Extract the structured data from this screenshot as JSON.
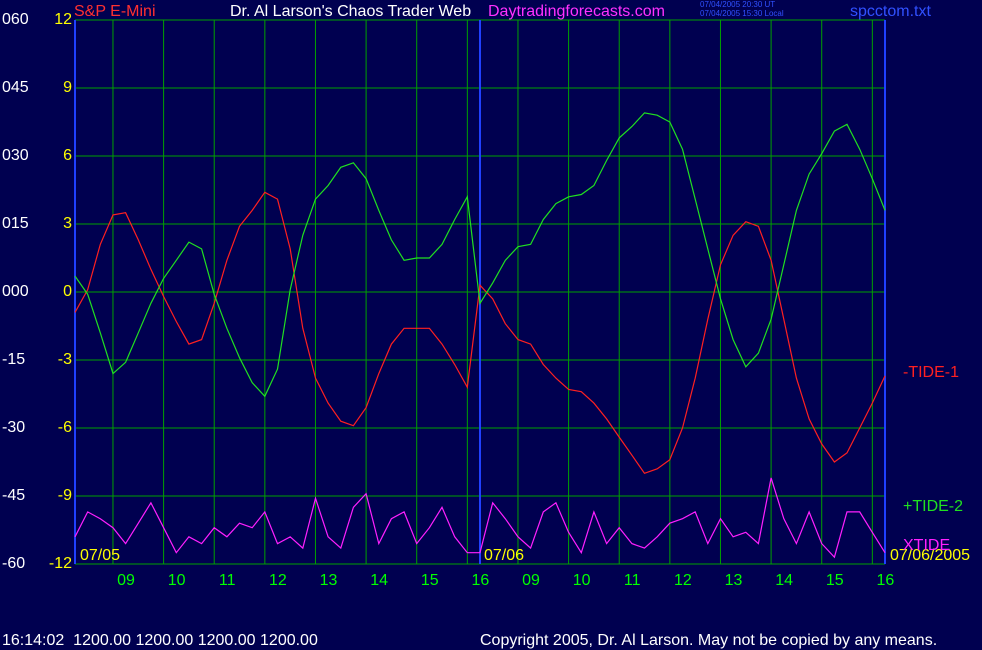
{
  "chart_data": {
    "type": "line",
    "header": {
      "symbol": "S&P E-Mini",
      "title": "Dr. Al Larson's Chaos Trader Web",
      "site": "Daytradingforecasts.com",
      "ut_time": "07/04/2005 20:30 UT",
      "local_time": "07/04/2005 15:30 Local",
      "file": "spcctom.txt"
    },
    "footer": {
      "status": "16:14:02  1200.00 1200.00 1200.00 1200.00",
      "copyright": "Copyright 2005, Dr. Al Larson. May not be copied by any means."
    },
    "date_labels": [
      "07/05",
      "07/06",
      "07/06/2005"
    ],
    "categories": [
      null,
      null,
      null,
      "09",
      null,
      null,
      null,
      "10",
      null,
      null,
      null,
      "11",
      null,
      null,
      null,
      "12",
      null,
      null,
      null,
      "13",
      null,
      null,
      null,
      "14",
      null,
      null,
      null,
      "15",
      null,
      null,
      null,
      "16",
      null,
      null,
      null,
      "09",
      null,
      null,
      null,
      "10",
      null,
      null,
      null,
      "11",
      null,
      null,
      null,
      "12",
      null,
      null,
      null,
      "13",
      null,
      null,
      null,
      "14",
      null,
      null,
      null,
      "15",
      null,
      null,
      null,
      "16",
      null
    ],
    "ylim": [
      -12,
      12
    ],
    "yticks": [
      12,
      9,
      6,
      3,
      0,
      -3,
      -6,
      -9,
      -12
    ],
    "y2lim": [
      -60,
      60
    ],
    "y2ticks": [
      {
        "value": 60,
        "label": "060"
      },
      {
        "value": 45,
        "label": "045"
      },
      {
        "value": 30,
        "label": "030"
      },
      {
        "value": 15,
        "label": "015"
      },
      {
        "value": 0,
        "label": "000"
      },
      -15,
      -30,
      -45,
      -60
    ],
    "grid": true,
    "series": [
      {
        "name": "-TIDE-1",
        "color": "#ff2020",
        "values": [
          -0.9,
          0.1,
          2.1,
          3.4,
          3.5,
          2.3,
          1.0,
          -0.2,
          -1.3,
          -2.3,
          -2.1,
          -0.5,
          1.4,
          2.9,
          3.6,
          4.4,
          4.1,
          1.9,
          -1.6,
          -3.8,
          -4.9,
          -5.7,
          -5.9,
          -5.1,
          -3.6,
          -2.3,
          -1.6,
          -1.6,
          -1.6,
          -2.3,
          -3.2,
          -4.2,
          0.3,
          -0.3,
          -1.4,
          -2.1,
          -2.3,
          -3.2,
          -3.8,
          -4.3,
          -4.4,
          -4.9,
          -5.6,
          -6.4,
          -7.2,
          -8.0,
          -7.8,
          -7.4,
          -6.0,
          -3.8,
          -1.2,
          1.2,
          2.5,
          3.1,
          2.9,
          1.4,
          -1.2,
          -3.8,
          -5.6,
          -6.7,
          -7.5,
          -7.1,
          -6.0,
          -4.9,
          -3.7
        ]
      },
      {
        "name": "+TIDE-2",
        "color": "#20e020",
        "values": [
          0.7,
          -0.1,
          -1.8,
          -3.6,
          -3.1,
          -1.8,
          -0.5,
          0.6,
          1.4,
          2.2,
          1.9,
          -0.1,
          -1.6,
          -2.9,
          -4.0,
          -4.6,
          -3.4,
          0.1,
          2.5,
          4.1,
          4.7,
          5.5,
          5.7,
          5.0,
          3.6,
          2.3,
          1.4,
          1.5,
          1.5,
          2.1,
          3.2,
          4.2,
          -0.5,
          0.4,
          1.4,
          2.0,
          2.1,
          3.2,
          3.9,
          4.2,
          4.3,
          4.7,
          5.8,
          6.8,
          7.3,
          7.9,
          7.8,
          7.5,
          6.3,
          4.1,
          1.9,
          -0.3,
          -2.1,
          -3.3,
          -2.7,
          -1.2,
          1.2,
          3.6,
          5.2,
          6.1,
          7.1,
          7.4,
          6.3,
          5.0,
          3.6
        ]
      },
      {
        "name": "XTIDE",
        "color": "#ff20ff",
        "values": [
          -10.8,
          -9.7,
          -10.0,
          -10.4,
          -11.1,
          -10.2,
          -9.3,
          -10.4,
          -11.5,
          -10.8,
          -11.1,
          -10.4,
          -10.8,
          -10.2,
          -10.4,
          -9.7,
          -11.1,
          -10.8,
          -11.3,
          -9.1,
          -10.8,
          -11.3,
          -9.5,
          -8.9,
          -11.1,
          -10.0,
          -9.7,
          -11.1,
          -10.4,
          -9.5,
          -10.8,
          -11.5,
          -11.5,
          -9.3,
          -10.0,
          -10.8,
          -11.3,
          -9.7,
          -9.3,
          -10.6,
          -11.5,
          -9.7,
          -11.1,
          -10.4,
          -11.1,
          -11.3,
          -10.8,
          -10.2,
          -10.0,
          -9.7,
          -11.1,
          -10.0,
          -10.8,
          -10.6,
          -11.1,
          -8.2,
          -10.0,
          -11.1,
          -9.7,
          -11.1,
          -11.7,
          -9.7,
          -9.7,
          -10.6,
          -11.5
        ]
      }
    ]
  }
}
